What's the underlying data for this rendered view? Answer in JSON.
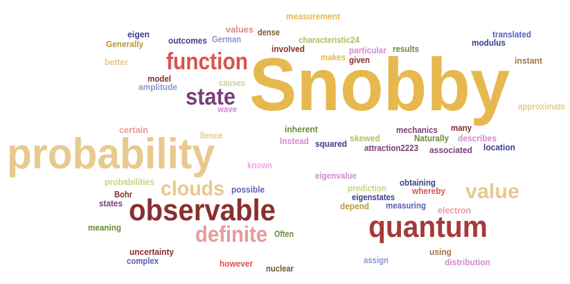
{
  "words": [
    {
      "id": "snobby",
      "text": "Snobby",
      "color": "#e6b84e"
    },
    {
      "id": "probability",
      "text": "probability",
      "color": "#e8c98e"
    },
    {
      "id": "function",
      "text": "function",
      "color": "#d9534f"
    },
    {
      "id": "state",
      "text": "state",
      "color": "#7b3f7a"
    },
    {
      "id": "observable",
      "text": "observable",
      "color": "#8b2e2e"
    },
    {
      "id": "quantum",
      "text": "quantum",
      "color": "#a63a3a"
    },
    {
      "id": "clouds",
      "text": "clouds",
      "color": "#e8c98e"
    },
    {
      "id": "value",
      "text": "value",
      "color": "#e8c98e"
    },
    {
      "id": "definite",
      "text": "definite",
      "color": "#e89a9a"
    },
    {
      "id": "measurement",
      "text": "measurement",
      "color": "#e6b84e"
    },
    {
      "id": "eigen",
      "text": "eigen",
      "color": "#3b3f8f"
    },
    {
      "id": "outcomes",
      "text": "outcomes",
      "color": "#3b3f8f"
    },
    {
      "id": "german",
      "text": "German",
      "color": "#8f96d6"
    },
    {
      "id": "values",
      "text": "values",
      "color": "#d98a8a"
    },
    {
      "id": "dense",
      "text": "dense",
      "color": "#7b5a2e"
    },
    {
      "id": "characteristic24",
      "text": "characteristic24",
      "color": "#a8c26a"
    },
    {
      "id": "translated",
      "text": "translated",
      "color": "#5a5fb8"
    },
    {
      "id": "modulus",
      "text": "modulus",
      "color": "#3b3f8f"
    },
    {
      "id": "generally",
      "text": "Generally",
      "color": "#b89a3a"
    },
    {
      "id": "involved",
      "text": "involved",
      "color": "#8b2e2e"
    },
    {
      "id": "particular",
      "text": "particular",
      "color": "#d48ad4"
    },
    {
      "id": "results",
      "text": "results",
      "color": "#6b8a3a"
    },
    {
      "id": "makes",
      "text": "makes",
      "color": "#e6b84e"
    },
    {
      "id": "given",
      "text": "given",
      "color": "#8b2e2e"
    },
    {
      "id": "better",
      "text": "better",
      "color": "#e8c98e"
    },
    {
      "id": "instant",
      "text": "instant",
      "color": "#a0784a"
    },
    {
      "id": "model",
      "text": "model",
      "color": "#8b2e2e"
    },
    {
      "id": "amplitude",
      "text": "amplitude",
      "color": "#8f96d6"
    },
    {
      "id": "causes",
      "text": "causes",
      "color": "#c8d48a"
    },
    {
      "id": "wave",
      "text": "wave",
      "color": "#d48ad4"
    },
    {
      "id": "approximate",
      "text": "approximate",
      "color": "#e8c98e"
    },
    {
      "id": "certain",
      "text": "certain",
      "color": "#e89a9a"
    },
    {
      "id": "llence",
      "text": "llence",
      "color": "#e8c98e"
    },
    {
      "id": "inherent",
      "text": "inherent",
      "color": "#6b8a3a"
    },
    {
      "id": "mechanics",
      "text": "mechanics",
      "color": "#7b3f7a"
    },
    {
      "id": "many",
      "text": "many",
      "color": "#8b2e2e"
    },
    {
      "id": "instead",
      "text": "Instead",
      "color": "#d48ad4"
    },
    {
      "id": "squared",
      "text": "squared",
      "color": "#3b3f8f"
    },
    {
      "id": "skewed",
      "text": "skewed",
      "color": "#a8c26a"
    },
    {
      "id": "naturally",
      "text": "Naturally",
      "color": "#6b8a3a"
    },
    {
      "id": "describes",
      "text": "describes",
      "color": "#d48ad4"
    },
    {
      "id": "attraction2223",
      "text": "attraction2223",
      "color": "#7b3f7a"
    },
    {
      "id": "associated",
      "text": "associated",
      "color": "#7b3f7a"
    },
    {
      "id": "location",
      "text": "location",
      "color": "#3b3f8f"
    },
    {
      "id": "known",
      "text": "known",
      "color": "#e8a8e8"
    },
    {
      "id": "eigenvalue",
      "text": "eigenvalue",
      "color": "#d48ad4"
    },
    {
      "id": "obtaining",
      "text": "obtaining",
      "color": "#3b3f8f"
    },
    {
      "id": "probabilities",
      "text": "probabilities",
      "color": "#c8d48a"
    },
    {
      "id": "prediction",
      "text": "prediction",
      "color": "#c8d48a"
    },
    {
      "id": "whereby",
      "text": "whereby",
      "color": "#d9534f"
    },
    {
      "id": "bohr",
      "text": "Bohr",
      "color": "#8b2e2e"
    },
    {
      "id": "possible",
      "text": "possible",
      "color": "#5a5fb8"
    },
    {
      "id": "eigenstates",
      "text": "eigenstates",
      "color": "#3b3f8f"
    },
    {
      "id": "states",
      "text": "states",
      "color": "#7b3f7a"
    },
    {
      "id": "depend",
      "text": "depend",
      "color": "#b89a3a"
    },
    {
      "id": "measuring",
      "text": "measuring",
      "color": "#5a5fb8"
    },
    {
      "id": "electron",
      "text": "electron",
      "color": "#e89a9a"
    },
    {
      "id": "meaning",
      "text": "meaning",
      "color": "#6b8a3a"
    },
    {
      "id": "often",
      "text": "Often",
      "color": "#6b8a3a"
    },
    {
      "id": "uncertainty",
      "text": "uncertainty",
      "color": "#8b2e2e"
    },
    {
      "id": "using",
      "text": "using",
      "color": "#a0784a"
    },
    {
      "id": "complex",
      "text": "complex",
      "color": "#5a5fb8"
    },
    {
      "id": "however",
      "text": "however",
      "color": "#d9534f"
    },
    {
      "id": "nuclear",
      "text": "nuclear",
      "color": "#6b5a2e"
    },
    {
      "id": "assign",
      "text": "assign",
      "color": "#8f96d6"
    },
    {
      "id": "distribution",
      "text": "distribution",
      "color": "#d48ad4"
    }
  ]
}
